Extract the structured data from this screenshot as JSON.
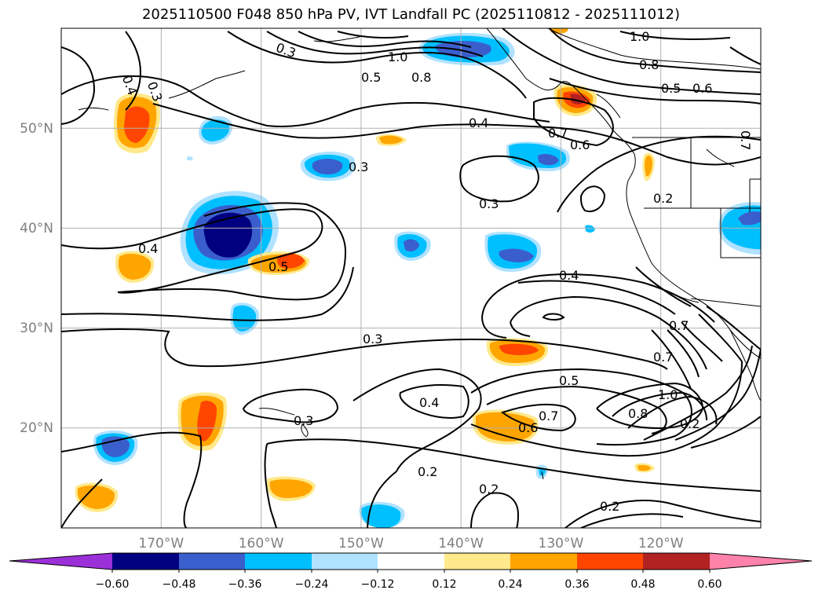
{
  "title": "2025110500 F048 850 hPa PV, IVT Landfall PC (2025110812 - 2025111012)",
  "map": {
    "lon_range": [
      -180,
      -110
    ],
    "lat_range": [
      10,
      60
    ],
    "lat_ticks": [
      "50°N",
      "40°N",
      "30°N",
      "20°N"
    ],
    "lon_ticks": [
      "170°W",
      "160°W",
      "150°W",
      "140°W",
      "130°W",
      "120°W"
    ]
  },
  "contour_labels": [
    "1.0",
    "0.8",
    "0.5",
    "0.6",
    "0.4",
    "0.7",
    "0.6",
    "0.3",
    "0.4",
    "0.2",
    "0.3",
    "0.4",
    "0.5",
    "0.3",
    "0.3",
    "0.4",
    "0.5",
    "0.7",
    "0.6",
    "0.7",
    "0.7",
    "0.8",
    "1.0",
    "0.2",
    "0.2",
    "0.2",
    "0.2",
    "0.3",
    "0.4",
    "0.3",
    "0.5",
    "0.8",
    "1.0",
    "0.7"
  ],
  "colorbar": {
    "ticks": [
      "−0.60",
      "−0.48",
      "−0.36",
      "−0.24",
      "−0.12",
      "0.12",
      "0.24",
      "0.36",
      "0.48",
      "0.60"
    ],
    "colors": [
      "#9b30d9",
      "#000080",
      "#3a5fcd",
      "#00bfff",
      "#b0e2ff",
      "#ffffff",
      "#ffe98a",
      "#ffa500",
      "#ff4500",
      "#b22222",
      "#ff82ab"
    ]
  }
}
